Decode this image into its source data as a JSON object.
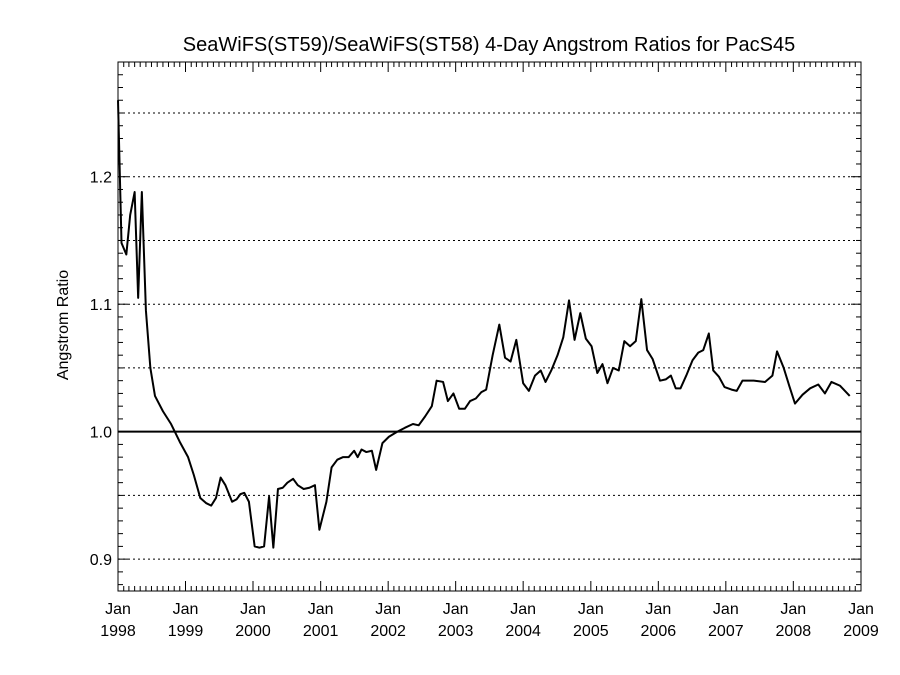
{
  "chart_data": {
    "type": "line",
    "title": "SeaWiFS(ST59)/SeaWiFS(ST58) 4-Day Angstrom Ratios for PacS45",
    "xlabel": "",
    "ylabel": "Angstrom Ratio",
    "xlim": [
      "1998-01-01",
      "2009-01-01"
    ],
    "ylim": [
      0.875,
      1.29
    ],
    "yticks": [
      0.9,
      1.0,
      1.1,
      1.2
    ],
    "ytick_labels": [
      "0.9",
      "1.0",
      "1.1",
      "1.2"
    ],
    "gridlines_dotted": [
      0.9,
      0.95,
      1.05,
      1.1,
      1.15,
      1.2,
      1.25
    ],
    "reference_line": 1.0,
    "grid": true,
    "xticks": [
      {
        "date": "1998-01-01",
        "month": "Jan",
        "year": "1998"
      },
      {
        "date": "1999-01-01",
        "month": "Jan",
        "year": "1999"
      },
      {
        "date": "2000-01-01",
        "month": "Jan",
        "year": "2000"
      },
      {
        "date": "2001-01-01",
        "month": "Jan",
        "year": "2001"
      },
      {
        "date": "2002-01-01",
        "month": "Jan",
        "year": "2002"
      },
      {
        "date": "2003-01-01",
        "month": "Jan",
        "year": "2003"
      },
      {
        "date": "2004-01-01",
        "month": "Jan",
        "year": "2004"
      },
      {
        "date": "2005-01-01",
        "month": "Jan",
        "year": "2005"
      },
      {
        "date": "2006-01-01",
        "month": "Jan",
        "year": "2006"
      },
      {
        "date": "2007-01-01",
        "month": "Jan",
        "year": "2007"
      },
      {
        "date": "2008-01-01",
        "month": "Jan",
        "year": "2008"
      },
      {
        "date": "2009-01-01",
        "month": "Jan",
        "year": "2009"
      }
    ],
    "series": [
      {
        "points": [
          [
            "1998-01-01",
            1.26
          ],
          [
            "1998-01-20",
            1.148
          ],
          [
            "1998-02-15",
            1.139
          ],
          [
            "1998-03-08",
            1.17
          ],
          [
            "1998-04-01",
            1.188
          ],
          [
            "1998-04-20",
            1.105
          ],
          [
            "1998-05-10",
            1.188
          ],
          [
            "1998-06-01",
            1.095
          ],
          [
            "1998-06-25",
            1.05
          ],
          [
            "1998-07-20",
            1.028
          ],
          [
            "1998-09-01",
            1.016
          ],
          [
            "1998-10-15",
            1.006
          ],
          [
            "1998-12-01",
            0.992
          ],
          [
            "1999-01-15",
            0.98
          ],
          [
            "1999-02-15",
            0.966
          ],
          [
            "1999-03-22",
            0.948
          ],
          [
            "1999-04-22",
            0.944
          ],
          [
            "1999-05-20",
            0.942
          ],
          [
            "1999-06-15",
            0.948
          ],
          [
            "1999-07-10",
            0.964
          ],
          [
            "1999-08-05",
            0.958
          ],
          [
            "1999-09-10",
            0.945
          ],
          [
            "1999-10-05",
            0.947
          ],
          [
            "1999-10-25",
            0.951
          ],
          [
            "1999-11-15",
            0.952
          ],
          [
            "1999-12-10",
            0.945
          ],
          [
            "2000-01-10",
            0.91
          ],
          [
            "2000-02-05",
            0.909
          ],
          [
            "2000-03-01",
            0.91
          ],
          [
            "2000-03-28",
            0.949
          ],
          [
            "2000-04-20",
            0.909
          ],
          [
            "2000-05-15",
            0.955
          ],
          [
            "2000-06-10",
            0.956
          ],
          [
            "2000-07-05",
            0.96
          ],
          [
            "2000-08-05",
            0.963
          ],
          [
            "2000-08-30",
            0.958
          ],
          [
            "2000-10-01",
            0.955
          ],
          [
            "2000-11-01",
            0.956
          ],
          [
            "2000-12-01",
            0.958
          ],
          [
            "2000-12-25",
            0.923
          ],
          [
            "2001-02-01",
            0.945
          ],
          [
            "2001-03-01",
            0.972
          ],
          [
            "2001-04-01",
            0.978
          ],
          [
            "2001-05-01",
            0.98
          ],
          [
            "2001-06-01",
            0.98
          ],
          [
            "2001-07-01",
            0.985
          ],
          [
            "2001-07-20",
            0.98
          ],
          [
            "2001-08-10",
            0.986
          ],
          [
            "2001-09-05",
            0.984
          ],
          [
            "2001-10-05",
            0.985
          ],
          [
            "2001-10-28",
            0.97
          ],
          [
            "2001-12-01",
            0.991
          ],
          [
            "2002-01-05",
            0.996
          ],
          [
            "2002-02-20",
            1.0
          ],
          [
            "2002-04-01",
            1.003
          ],
          [
            "2002-05-15",
            1.006
          ],
          [
            "2002-06-15",
            1.005
          ],
          [
            "2002-07-20",
            1.012
          ],
          [
            "2002-08-25",
            1.02
          ],
          [
            "2002-09-20",
            1.04
          ],
          [
            "2002-10-25",
            1.039
          ],
          [
            "2002-11-20",
            1.024
          ],
          [
            "2002-12-20",
            1.03
          ],
          [
            "2003-01-20",
            1.018
          ],
          [
            "2003-02-20",
            1.018
          ],
          [
            "2003-03-20",
            1.024
          ],
          [
            "2003-04-20",
            1.026
          ],
          [
            "2003-05-20",
            1.031
          ],
          [
            "2003-06-15",
            1.033
          ],
          [
            "2003-07-20",
            1.06
          ],
          [
            "2003-08-25",
            1.084
          ],
          [
            "2003-09-25",
            1.058
          ],
          [
            "2003-10-25",
            1.055
          ],
          [
            "2003-11-25",
            1.072
          ],
          [
            "2004-01-01",
            1.038
          ],
          [
            "2004-02-01",
            1.032
          ],
          [
            "2004-03-05",
            1.044
          ],
          [
            "2004-04-05",
            1.048
          ],
          [
            "2004-05-01",
            1.039
          ],
          [
            "2004-06-01",
            1.048
          ],
          [
            "2004-07-05",
            1.06
          ],
          [
            "2004-08-05",
            1.074
          ],
          [
            "2004-09-05",
            1.103
          ],
          [
            "2004-10-05",
            1.072
          ],
          [
            "2004-11-05",
            1.093
          ],
          [
            "2004-12-05",
            1.073
          ],
          [
            "2005-01-05",
            1.067
          ],
          [
            "2005-02-05",
            1.046
          ],
          [
            "2005-03-05",
            1.053
          ],
          [
            "2005-04-01",
            1.038
          ],
          [
            "2005-05-01",
            1.05
          ],
          [
            "2005-06-01",
            1.048
          ],
          [
            "2005-07-01",
            1.071
          ],
          [
            "2005-08-01",
            1.067
          ],
          [
            "2005-09-01",
            1.071
          ],
          [
            "2005-10-01",
            1.104
          ],
          [
            "2005-11-01",
            1.064
          ],
          [
            "2005-12-01",
            1.057
          ],
          [
            "2006-01-10",
            1.04
          ],
          [
            "2006-02-10",
            1.041
          ],
          [
            "2006-03-10",
            1.044
          ],
          [
            "2006-04-05",
            1.034
          ],
          [
            "2006-05-01",
            1.034
          ],
          [
            "2006-06-01",
            1.044
          ],
          [
            "2006-07-05",
            1.056
          ],
          [
            "2006-08-05",
            1.062
          ],
          [
            "2006-09-01",
            1.064
          ],
          [
            "2006-10-01",
            1.077
          ],
          [
            "2006-10-25",
            1.048
          ],
          [
            "2006-11-25",
            1.043
          ],
          [
            "2006-12-25",
            1.035
          ],
          [
            "2007-02-01",
            1.033
          ],
          [
            "2007-03-01",
            1.032
          ],
          [
            "2007-04-01",
            1.04
          ],
          [
            "2007-06-01",
            1.04
          ],
          [
            "2007-08-01",
            1.039
          ],
          [
            "2007-09-10",
            1.044
          ],
          [
            "2007-10-05",
            1.063
          ],
          [
            "2007-11-10",
            1.05
          ],
          [
            "2007-12-10",
            1.036
          ],
          [
            "2008-01-10",
            1.022
          ],
          [
            "2008-02-20",
            1.029
          ],
          [
            "2008-04-01",
            1.034
          ],
          [
            "2008-05-15",
            1.037
          ],
          [
            "2008-06-20",
            1.03
          ],
          [
            "2008-07-25",
            1.039
          ],
          [
            "2008-09-10",
            1.036
          ],
          [
            "2008-11-01",
            1.028
          ]
        ]
      }
    ]
  }
}
